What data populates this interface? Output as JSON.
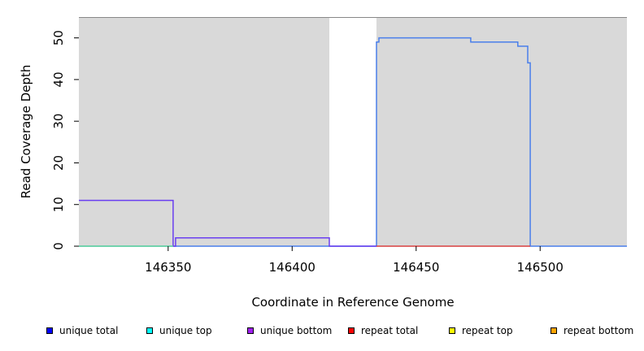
{
  "chart_data": {
    "type": "line",
    "title": "",
    "xlabel": "Coordinate in Reference Genome",
    "ylabel": "Read Coverage Depth",
    "xlim": [
      146314,
      146535
    ],
    "ylim": [
      0,
      55
    ],
    "x_ticks": [
      146350,
      146400,
      146450,
      146500
    ],
    "y_ticks": [
      0,
      10,
      20,
      30,
      40,
      50
    ],
    "panel_background": "#d9d9d9",
    "grid": false,
    "gap_regions": [
      [
        146415,
        146434
      ]
    ],
    "series": [
      {
        "name": "unique total",
        "color": "#4a7fea",
        "x": [
          146314,
          146415,
          146415,
          146434,
          146434,
          146435,
          146435,
          146472,
          146472,
          146491,
          146491,
          146495,
          146495,
          146496,
          146496,
          146535
        ],
        "y": [
          0,
          0,
          0,
          0,
          49,
          49,
          50,
          50,
          49,
          49,
          48,
          48,
          44,
          44,
          0,
          0
        ]
      },
      {
        "name": "unique bottom",
        "color": "#6a3ff0",
        "x": [
          146314,
          146352,
          146352,
          146353,
          146353,
          146415,
          146415,
          146434
        ],
        "y": [
          11,
          11,
          0,
          0,
          2,
          2,
          0,
          0
        ]
      },
      {
        "name": "unique top",
        "color": "#66dd99",
        "x": [
          146314,
          146352
        ],
        "y": [
          0,
          0
        ]
      },
      {
        "name": "repeat total",
        "color": "#d94040",
        "x": [
          146434,
          146496
        ],
        "y": [
          0,
          0
        ]
      }
    ],
    "legend": [
      {
        "label": "unique total",
        "color": "#0000ff"
      },
      {
        "label": "unique top",
        "color": "#00ffff"
      },
      {
        "label": "unique bottom",
        "color": "#a020f0"
      },
      {
        "label": "repeat total",
        "color": "#ff0000"
      },
      {
        "label": "repeat top",
        "color": "#ffff00"
      },
      {
        "label": "repeat bottom",
        "color": "#ffa500"
      }
    ],
    "legend_placement": "bottom"
  }
}
